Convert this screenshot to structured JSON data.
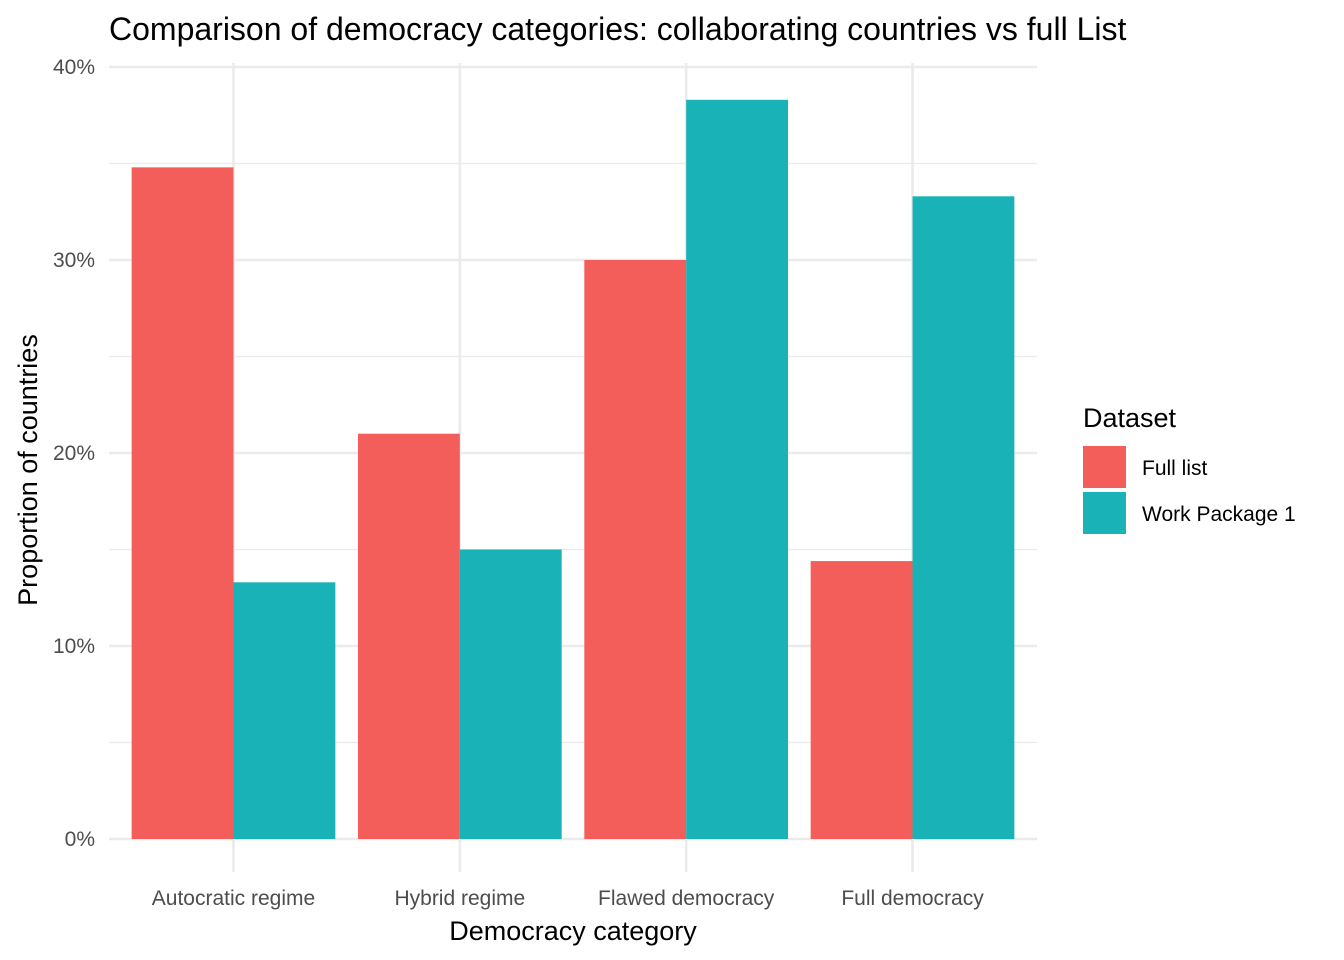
{
  "chart_data": {
    "type": "bar",
    "title": "Comparison of democracy categories: collaborating countries vs full List",
    "xlabel": "Democracy category",
    "ylabel": "Proportion of countries",
    "categories": [
      "Autocratic regime",
      "Hybrid regime",
      "Flawed democracy",
      "Full democracy"
    ],
    "series": [
      {
        "name": "Full list",
        "color": "#F35E5A",
        "values": [
          0.348,
          0.21,
          0.3,
          0.144
        ]
      },
      {
        "name": "Work Package 1",
        "color": "#19B3B7",
        "values": [
          0.133,
          0.15,
          0.383,
          0.333
        ]
      }
    ],
    "ylim": [
      0,
      0.4
    ],
    "yticks": [
      0,
      0.1,
      0.2,
      0.3,
      0.4
    ],
    "ytick_labels": [
      "0%",
      "10%",
      "20%",
      "30%",
      "40%"
    ],
    "grid": true,
    "legend_title": "Dataset",
    "legend_position": "right"
  }
}
